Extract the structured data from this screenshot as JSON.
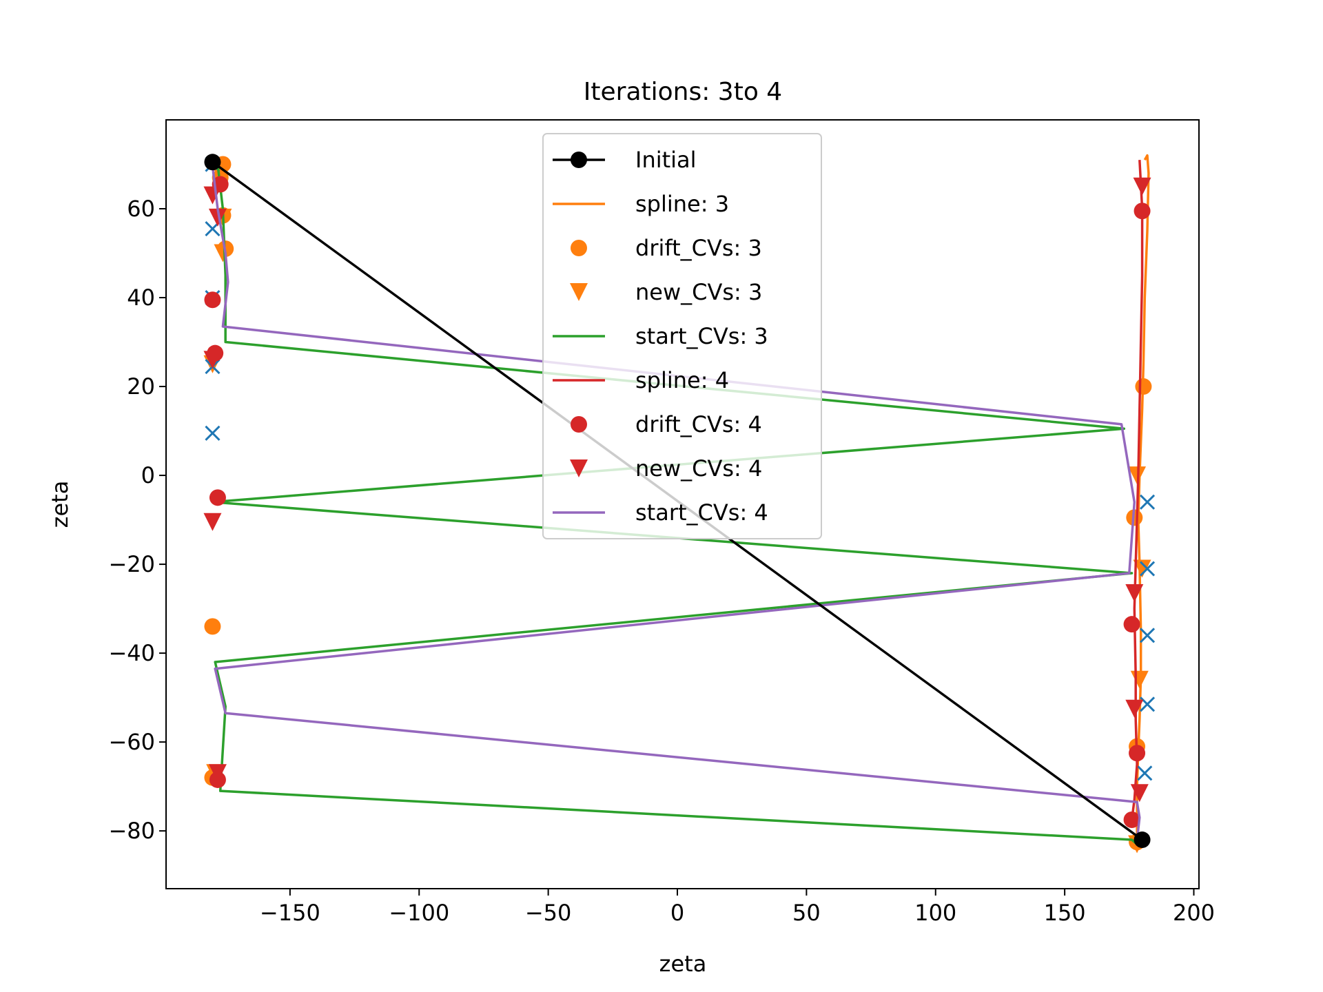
{
  "chart_data": {
    "type": "line",
    "title": "Iterations: 3to 4",
    "xlabel": "zeta",
    "ylabel": "zeta",
    "xlim": [
      -198,
      202
    ],
    "ylim": [
      -93,
      80
    ],
    "xticks": [
      -150,
      -100,
      -50,
      0,
      50,
      100,
      150,
      200
    ],
    "xtick_labels": [
      "−150",
      "−100",
      "−50",
      "0",
      "50",
      "100",
      "150",
      "200"
    ],
    "yticks": [
      -80,
      -60,
      -40,
      -20,
      0,
      20,
      40,
      60
    ],
    "ytick_labels": [
      "−80",
      "−60",
      "−40",
      "−20",
      "0",
      "20",
      "40",
      "60"
    ],
    "grid": false,
    "legend_position": "top-center",
    "legend": [
      {
        "label": "Initial",
        "color": "#000000",
        "kind": "line-dot"
      },
      {
        "label": "spline: 3",
        "color": "#ff7f0e",
        "kind": "line"
      },
      {
        "label": "drift_CVs: 3",
        "color": "#ff7f0e",
        "kind": "dot"
      },
      {
        "label": "new_CVs: 3",
        "color": "#ff7f0e",
        "kind": "triangle"
      },
      {
        "label": "start_CVs: 3",
        "color": "#2ca02c",
        "kind": "line"
      },
      {
        "label": "spline: 4",
        "color": "#d62728",
        "kind": "line"
      },
      {
        "label": "drift_CVs: 4",
        "color": "#d62728",
        "kind": "dot"
      },
      {
        "label": "new_CVs: 4",
        "color": "#d62728",
        "kind": "triangle"
      },
      {
        "label": "start_CVs: 4",
        "color": "#9467bd",
        "kind": "line"
      }
    ],
    "series": [
      {
        "key": "initial",
        "kind": "line-dot",
        "color": "#000000",
        "points": [
          [
            -180,
            70.5
          ],
          [
            180,
            -82
          ]
        ]
      },
      {
        "key": "spline3",
        "kind": "line",
        "color": "#ff7f0e",
        "points": [
          [
            181,
            71
          ],
          [
            182,
            72
          ],
          [
            182.5,
            68
          ],
          [
            182,
            55
          ],
          [
            181,
            40
          ],
          [
            180.5,
            25
          ],
          [
            180,
            15
          ],
          [
            179,
            0
          ],
          [
            178.5,
            -10
          ],
          [
            179,
            -20
          ],
          [
            179.5,
            -35
          ],
          [
            179.5,
            -45
          ],
          [
            179,
            -55
          ],
          [
            178.5,
            -62
          ],
          [
            178,
            -70
          ],
          [
            178,
            -78
          ],
          [
            178,
            -83
          ]
        ]
      },
      {
        "key": "drift3",
        "kind": "dot",
        "color": "#ff7f0e",
        "points": [
          [
            -176,
            70
          ],
          [
            -177,
            67
          ],
          [
            -176,
            58.5
          ],
          [
            -175,
            51
          ],
          [
            -180,
            -34
          ],
          [
            -180,
            -68
          ],
          [
            180.5,
            20
          ],
          [
            177,
            -9.5
          ],
          [
            178,
            -61
          ],
          [
            178,
            -82.5
          ]
        ]
      },
      {
        "key": "new3",
        "kind": "triangle",
        "color": "#ff7f0e",
        "points": [
          [
            -177,
            68
          ],
          [
            -176,
            58
          ],
          [
            -176,
            50
          ],
          [
            -180,
            25
          ],
          [
            -179,
            -67
          ],
          [
            178,
            0
          ],
          [
            180,
            -21
          ],
          [
            179,
            -46
          ],
          [
            178,
            -83
          ]
        ]
      },
      {
        "key": "startx",
        "kind": "cross",
        "color": "#1f77b4",
        "points": [
          [
            -180,
            55.5
          ],
          [
            -180,
            40
          ],
          [
            -180,
            24.5
          ],
          [
            -180,
            9.5
          ],
          [
            182,
            -6
          ],
          [
            182,
            -21
          ],
          [
            182,
            -36
          ],
          [
            182,
            -51.5
          ],
          [
            181,
            -67
          ],
          [
            -180,
            70
          ]
        ]
      },
      {
        "key": "start3",
        "kind": "line",
        "color": "#2ca02c",
        "points": [
          [
            -178,
            70
          ],
          [
            -176,
            60
          ],
          [
            -175,
            45
          ],
          [
            -175,
            30
          ],
          [
            173,
            10.5
          ],
          [
            -180,
            -6
          ],
          [
            176,
            -22
          ],
          [
            -179,
            -42
          ],
          [
            -175,
            -52
          ],
          [
            -177,
            -71
          ],
          [
            176,
            -82
          ],
          [
            178,
            -83
          ]
        ]
      },
      {
        "key": "spline4",
        "kind": "line",
        "color": "#d62728",
        "points": [
          [
            179,
            71
          ],
          [
            180,
            60
          ],
          [
            180,
            45
          ],
          [
            179.5,
            30
          ],
          [
            179,
            15
          ],
          [
            178.5,
            0
          ],
          [
            177.5,
            -20
          ],
          [
            177,
            -30
          ],
          [
            177.5,
            -45
          ],
          [
            177.5,
            -55
          ],
          [
            178,
            -65
          ],
          [
            177,
            -73
          ],
          [
            176,
            -77.5
          ]
        ]
      },
      {
        "key": "drift4",
        "kind": "dot",
        "color": "#d62728",
        "points": [
          [
            -177,
            65.5
          ],
          [
            -180,
            39.5
          ],
          [
            -179,
            27.5
          ],
          [
            -178,
            -5
          ],
          [
            -178,
            -68.5
          ],
          [
            180,
            59.5
          ],
          [
            176,
            -33.5
          ],
          [
            178,
            -62.5
          ],
          [
            176,
            -77.5
          ]
        ]
      },
      {
        "key": "new4",
        "kind": "triangle",
        "color": "#d62728",
        "points": [
          [
            -180,
            63
          ],
          [
            -178,
            58
          ],
          [
            -180,
            26
          ],
          [
            -180,
            -10.5
          ],
          [
            -178,
            -67
          ],
          [
            180,
            65
          ],
          [
            177,
            -26.5
          ],
          [
            177,
            -52.5
          ],
          [
            179,
            -71.5
          ]
        ]
      },
      {
        "key": "start4",
        "kind": "line",
        "color": "#9467bd",
        "points": [
          [
            -180,
            69.5
          ],
          [
            -178,
            60
          ],
          [
            -175,
            50
          ],
          [
            -174,
            43.5
          ],
          [
            -176,
            33.5
          ],
          [
            172,
            11.5
          ],
          [
            177,
            -6
          ],
          [
            175,
            -22
          ],
          [
            -179,
            -43.5
          ],
          [
            -175,
            -53.5
          ],
          [
            178,
            -73.5
          ],
          [
            179,
            -77
          ],
          [
            178,
            -82
          ]
        ]
      }
    ]
  }
}
